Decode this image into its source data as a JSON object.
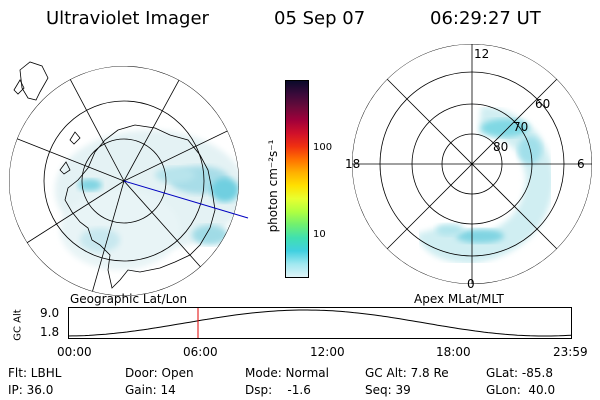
{
  "header": {
    "title": "Ultraviolet Imager",
    "date": "05 Sep 07",
    "time": "06:29:27 UT"
  },
  "left_map": {
    "label": "Geographic Lat/Lon"
  },
  "right_map": {
    "label": "Apex MLat/MLT",
    "mlt_labels": {
      "top": "12",
      "bottom": "0",
      "left": "18",
      "right": "6"
    },
    "lat_labels": [
      "60",
      "70",
      "80"
    ]
  },
  "colorbar": {
    "unit_label": "photon cm⁻²s⁻¹",
    "ticks": [
      "100",
      "10"
    ],
    "colors": [
      "#0a0a2a",
      "#3a0a3a",
      "#6a0a3a",
      "#a0003a",
      "#d0102a",
      "#f03010",
      "#ff7000",
      "#ffb000",
      "#ffe000",
      "#e8ff30",
      "#b0ff40",
      "#70f070",
      "#40e0b0",
      "#40d0e0",
      "#a0e8f0",
      "#e0f4f8"
    ]
  },
  "alt_plot": {
    "ylabel": "GC Alt",
    "y_ticks": [
      "9.0",
      "1.8"
    ],
    "x_ticks": [
      "00:00",
      "06:00",
      "12:00",
      "18:00",
      "23:59"
    ],
    "marker_color": "#e00000"
  },
  "info": {
    "flt": "Flt: LBHL",
    "door": "Door: Open",
    "mode": "Mode: Normal",
    "gc_alt": "GC Alt: 7.8 Re",
    "glat": "GLat: -85.8",
    "ip": "IP: 36.0",
    "gain": "Gain: 14",
    "dsp": "Dsp:    -1.6",
    "seq": "Seq: 39",
    "glon": "GLon:  40.0"
  }
}
